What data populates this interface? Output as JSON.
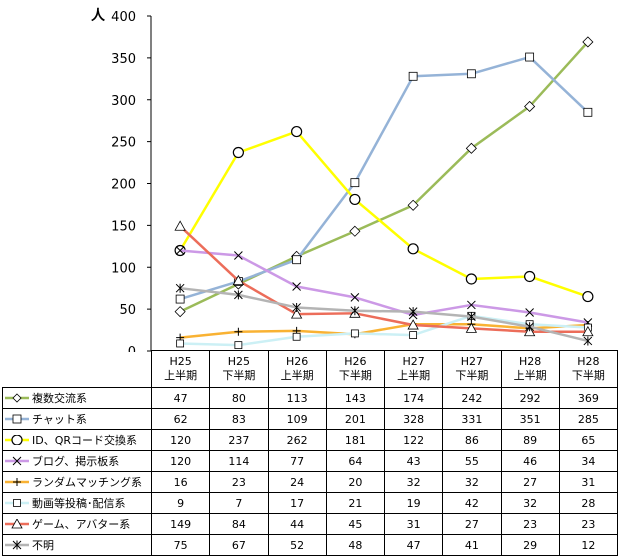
{
  "chart_data": {
    "type": "line",
    "unit_label": "人",
    "ylim": [
      0,
      400
    ],
    "yticks": [
      "0",
      "50",
      "100",
      "150",
      "200",
      "250",
      "300",
      "350",
      "400"
    ],
    "categories": [
      {
        "l1": "H25",
        "l2": "上半期"
      },
      {
        "l1": "H25",
        "l2": "下半期"
      },
      {
        "l1": "H26",
        "l2": "上半期"
      },
      {
        "l1": "H26",
        "l2": "下半期"
      },
      {
        "l1": "H27",
        "l2": "上半期"
      },
      {
        "l1": "H27",
        "l2": "下半期"
      },
      {
        "l1": "H28",
        "l2": "上半期"
      },
      {
        "l1": "H28",
        "l2": "下半期"
      }
    ],
    "series": [
      {
        "name": "複数交流系",
        "color": "#9bbb59",
        "marker": "diamond",
        "values": [
          47,
          80,
          113,
          143,
          174,
          242,
          292,
          369
        ]
      },
      {
        "name": "チャット系",
        "color": "#95b3d7",
        "marker": "square",
        "values": [
          62,
          83,
          109,
          201,
          328,
          331,
          351,
          285
        ]
      },
      {
        "name": "ID、QRコード交換系",
        "color": "#ffff00",
        "marker": "circle",
        "values": [
          120,
          237,
          262,
          181,
          122,
          86,
          89,
          65
        ]
      },
      {
        "name": "ブログ、掲示板系",
        "color": "#cc99e6",
        "marker": "x",
        "values": [
          120,
          114,
          77,
          64,
          43,
          55,
          46,
          34
        ]
      },
      {
        "name": "ランダムマッチング系",
        "color": "#f9b233",
        "marker": "plus",
        "values": [
          16,
          23,
          24,
          20,
          32,
          32,
          27,
          31
        ]
      },
      {
        "name": "動画等投稿･配信系",
        "color": "#ccf0f5",
        "marker": "square-small",
        "values": [
          9,
          7,
          17,
          21,
          19,
          42,
          32,
          28
        ]
      },
      {
        "name": "ゲーム、アバター系",
        "color": "#ec6d5a",
        "marker": "triangle",
        "values": [
          149,
          84,
          44,
          45,
          31,
          27,
          23,
          23
        ]
      },
      {
        "name": "不明",
        "color": "#b4b4b4",
        "marker": "asterisk",
        "values": [
          75,
          67,
          52,
          48,
          47,
          41,
          29,
          12
        ]
      }
    ]
  }
}
